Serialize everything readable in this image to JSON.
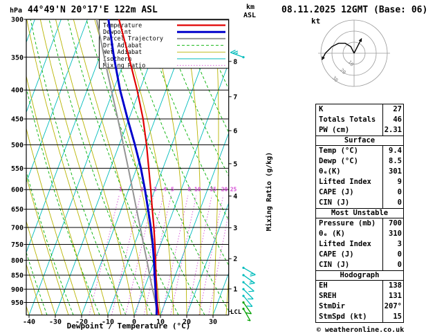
{
  "header": {
    "pressure_unit": "hPa",
    "station_title": "44°49'N 20°17'E 122m ASL",
    "datetime_title": "08.11.2025 12GMT (Base: 06)",
    "altitude_unit_top": "km",
    "altitude_unit_bottom": "ASL"
  },
  "axes": {
    "pressure_ticks_hpa": [
      300,
      350,
      400,
      450,
      500,
      550,
      600,
      650,
      700,
      750,
      800,
      850,
      900,
      950
    ],
    "temperature_ticks_c": [
      -40,
      -30,
      -20,
      -10,
      0,
      10,
      20,
      30
    ],
    "km_ticks": [
      {
        "km": 1,
        "hpa": 899
      },
      {
        "km": 2,
        "hpa": 795
      },
      {
        "km": 3,
        "hpa": 701
      },
      {
        "km": 4,
        "hpa": 616
      },
      {
        "km": 5,
        "hpa": 540
      },
      {
        "km": 6,
        "hpa": 472
      },
      {
        "km": 7,
        "hpa": 411
      },
      {
        "km": 8,
        "hpa": 356
      }
    ],
    "x_axis_label": "Dewpoint / Temperature (°C)",
    "mixing_ratio_axis_label": "Mixing Ratio (g/kg)",
    "lcl_label": "LCL"
  },
  "style": {
    "temperature": {
      "color": "#e00000",
      "width": 2.2,
      "dash": ""
    },
    "dewpoint": {
      "color": "#0000cc",
      "width": 3,
      "dash": ""
    },
    "parcel": {
      "color": "#949494",
      "width": 2,
      "dash": ""
    },
    "dry_adiabat": {
      "color": "#00b000",
      "width": 0.9,
      "dash": "4,3"
    },
    "wet_adiabat": {
      "color": "#b8b400",
      "width": 0.9,
      "dash": ""
    },
    "isotherm": {
      "color": "#00bcbc",
      "width": 0.9,
      "dash": ""
    },
    "mixing_ratio": {
      "color": "#d44ad4",
      "width": 0.9,
      "dash": "1.5,2.5"
    },
    "grid": {
      "color": "#000000",
      "width": 1
    }
  },
  "legend": {
    "items": [
      {
        "key": "temperature",
        "label": "Temperature"
      },
      {
        "key": "dewpoint",
        "label": "Dewpoint"
      },
      {
        "key": "parcel",
        "label": "Parcel Trajectory"
      },
      {
        "key": "dry_adiabat",
        "label": "Dry Adiabat"
      },
      {
        "key": "wet_adiabat",
        "label": "Wet Adiabat"
      },
      {
        "key": "isotherm",
        "label": "Isotherm"
      },
      {
        "key": "mixing_ratio",
        "label": "Mixing Ratio"
      }
    ]
  },
  "chart_data": {
    "type": "skewt-log-p",
    "pressure_axis_range_hpa": [
      300,
      1000
    ],
    "temperature_axis_range_c": [
      -40,
      35
    ],
    "isotherms_c": {
      "min": -120,
      "max": 40,
      "step": 10
    },
    "dry_adiabats_theta_k": {
      "min": 230,
      "max": 450,
      "step": 10
    },
    "wet_adiabats_surface_c": {
      "min": -40,
      "max": 36,
      "step": 5
    },
    "mixing_ratio_lines_gkg": [
      1,
      2,
      3,
      4,
      5,
      8,
      10,
      15,
      20,
      25
    ],
    "mixing_ratio_label_pressure_hpa": 600,
    "lcl_pressure_hpa": 985,
    "sounding": {
      "temperature_p_c": [
        [
          1000,
          9.4
        ],
        [
          975,
          8.2
        ],
        [
          950,
          7.0
        ],
        [
          925,
          5.9
        ],
        [
          900,
          4.8
        ],
        [
          850,
          2.6
        ],
        [
          800,
          0.3
        ],
        [
          750,
          -2.2
        ],
        [
          700,
          -5.0
        ],
        [
          650,
          -8.2
        ],
        [
          600,
          -11.6
        ],
        [
          550,
          -15.4
        ],
        [
          500,
          -19.6
        ],
        [
          450,
          -24.6
        ],
        [
          400,
          -31.0
        ],
        [
          350,
          -38.8
        ],
        [
          300,
          -48.0
        ]
      ],
      "dewpoint_p_c": [
        [
          1000,
          8.5
        ],
        [
          975,
          7.7
        ],
        [
          950,
          6.6
        ],
        [
          925,
          5.5
        ],
        [
          900,
          4.4
        ],
        [
          850,
          2.1
        ],
        [
          800,
          -0.3
        ],
        [
          750,
          -3.0
        ],
        [
          700,
          -6.2
        ],
        [
          650,
          -9.8
        ],
        [
          600,
          -13.8
        ],
        [
          550,
          -18.4
        ],
        [
          500,
          -24.0
        ],
        [
          450,
          -30.5
        ],
        [
          400,
          -37.5
        ],
        [
          350,
          -44.5
        ],
        [
          300,
          -52.0
        ]
      ],
      "parcel_p_c": [
        [
          1000,
          9.4
        ],
        [
          985,
          8.3
        ],
        [
          950,
          6.3
        ],
        [
          900,
          3.3
        ],
        [
          850,
          0.2
        ],
        [
          800,
          -3.0
        ],
        [
          750,
          -6.5
        ],
        [
          700,
          -10.2
        ],
        [
          650,
          -14.2
        ],
        [
          600,
          -18.5
        ],
        [
          550,
          -23.2
        ],
        [
          500,
          -28.4
        ],
        [
          450,
          -34.2
        ],
        [
          400,
          -40.8
        ],
        [
          350,
          -48.2
        ],
        [
          300,
          -56.5
        ]
      ]
    },
    "wind_barbs": [
      {
        "hpa": 350,
        "speed_kt": 25,
        "dir_deg": 290,
        "color": "#00bcbc"
      },
      {
        "hpa": 825,
        "speed_kt": 15,
        "dir_deg": 120,
        "color": "#00bcbc"
      },
      {
        "hpa": 850,
        "speed_kt": 15,
        "dir_deg": 125,
        "color": "#00bcbc"
      },
      {
        "hpa": 875,
        "speed_kt": 10,
        "dir_deg": 130,
        "color": "#00bcbc"
      },
      {
        "hpa": 900,
        "speed_kt": 10,
        "dir_deg": 135,
        "color": "#00bcbc"
      },
      {
        "hpa": 925,
        "speed_kt": 10,
        "dir_deg": 140,
        "color": "#00bcbc"
      },
      {
        "hpa": 950,
        "speed_kt": 10,
        "dir_deg": 145,
        "color": "#00a000"
      },
      {
        "hpa": 975,
        "speed_kt": 5,
        "dir_deg": 150,
        "color": "#00a000"
      }
    ]
  },
  "hodograph": {
    "unit": "kt",
    "ring_values_kt": [
      10,
      20,
      30
    ],
    "trace_uv_kt": [
      [
        0,
        0
      ],
      [
        -3,
        6
      ],
      [
        -8,
        9
      ],
      [
        -14,
        9
      ],
      [
        -20,
        6
      ],
      [
        -26,
        0
      ],
      [
        -29,
        -6
      ]
    ],
    "storm_motion_uv_kt": [
      6.8,
      13.4
    ]
  },
  "table": {
    "sections": [
      {
        "header": "",
        "rows": [
          [
            "K",
            "27"
          ],
          [
            "Totals Totals",
            "46"
          ],
          [
            "PW (cm)",
            "2.31"
          ]
        ]
      },
      {
        "header": "Surface",
        "rows": [
          [
            "Temp (°C)",
            "9.4"
          ],
          [
            "Dewp (°C)",
            "8.5"
          ],
          [
            "θₑ(K)",
            "301"
          ],
          [
            "Lifted Index",
            "9"
          ],
          [
            "CAPE (J)",
            "0"
          ],
          [
            "CIN (J)",
            "0"
          ]
        ]
      },
      {
        "header": "Most Unstable",
        "rows": [
          [
            "Pressure (mb)",
            "700"
          ],
          [
            "θₑ (K)",
            "310"
          ],
          [
            "Lifted Index",
            "3"
          ],
          [
            "CAPE (J)",
            "0"
          ],
          [
            "CIN (J)",
            "0"
          ]
        ]
      },
      {
        "header": "Hodograph",
        "rows": [
          [
            "EH",
            "138"
          ],
          [
            "SREH",
            "131"
          ],
          [
            "StmDir",
            "207°"
          ],
          [
            "StmSpd (kt)",
            "15"
          ]
        ]
      }
    ]
  },
  "footer": {
    "copyright": "© weatheronline.co.uk"
  }
}
